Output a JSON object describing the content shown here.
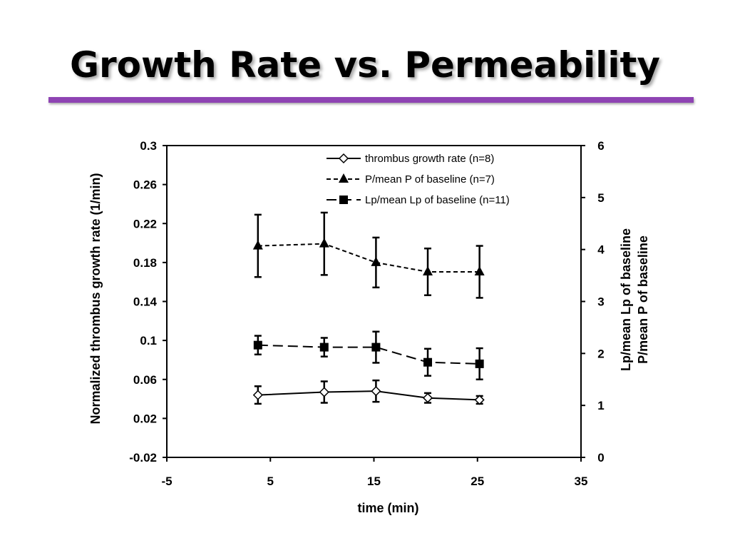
{
  "slide": {
    "title": "Growth Rate vs. Permeability",
    "rule_color": "#8e44b3"
  },
  "chart_data": {
    "type": "line",
    "xlabel": "time (min)",
    "ylabel": "Normalized thrombus growth rate (1/min)",
    "y2label_lines": [
      "Lp/mean Lp of baseline",
      "P/mean P of baseline"
    ],
    "xlim": [
      -5,
      35
    ],
    "ylim": [
      -0.02,
      0.3
    ],
    "y2lim": [
      0,
      6
    ],
    "xticks": [
      -5,
      5,
      15,
      25,
      35
    ],
    "yticks": [
      -0.02,
      0.02,
      0.06,
      0.1,
      0.14,
      0.18,
      0.22,
      0.26,
      0.3
    ],
    "y2ticks": [
      0,
      1,
      2,
      3,
      4,
      5,
      6
    ],
    "grid": false,
    "legend_position": "top-right",
    "series": [
      {
        "name": "thrombus growth rate (n=8)",
        "axis": "left",
        "marker": "open-diamond",
        "line": "solid",
        "x": [
          3.8,
          10.2,
          15.2,
          20.2,
          25.2
        ],
        "y": [
          0.044,
          0.047,
          0.048,
          0.041,
          0.039
        ],
        "err": [
          0.009,
          0.011,
          0.011,
          0.005,
          0.004
        ]
      },
      {
        "name": "P/mean P of baseline (n=7)",
        "axis": "right",
        "marker": "filled-triangle",
        "line": "dotted",
        "x": [
          3.8,
          10.2,
          15.2,
          20.2,
          25.2
        ],
        "y": [
          4.07,
          4.11,
          3.75,
          3.57,
          3.57
        ],
        "err": [
          0.6,
          0.6,
          0.48,
          0.45,
          0.5
        ]
      },
      {
        "name": "Lp/mean Lp of baseline (n=11)",
        "axis": "right",
        "marker": "filled-square",
        "line": "dashed",
        "x": [
          3.8,
          10.2,
          15.2,
          20.2,
          25.2
        ],
        "y": [
          2.16,
          2.12,
          2.12,
          1.83,
          1.8
        ],
        "err": [
          0.18,
          0.18,
          0.3,
          0.26,
          0.3
        ]
      }
    ]
  }
}
